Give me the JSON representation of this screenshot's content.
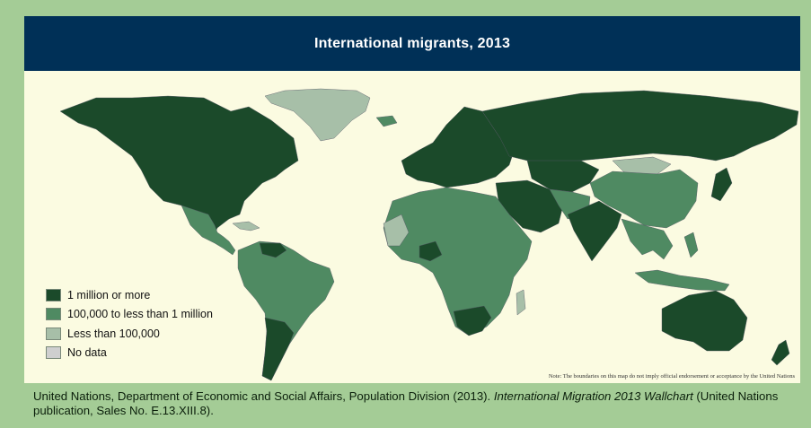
{
  "title": "International migrants, 2013",
  "legend": [
    {
      "label": "1 million or more",
      "color": "#1b4a2a"
    },
    {
      "label": "100,000 to less than 1 million",
      "color": "#4f8a62"
    },
    {
      "label": "Less than 100,000",
      "color": "#a7bfa8"
    },
    {
      "label": "No data",
      "color": "#cfcfcf"
    }
  ],
  "colors": {
    "background": "#a4cc96",
    "map_bg": "#fbfbe1",
    "title_bar": "#003057"
  },
  "note": "Note: The boundaries on this map do not imply official endorsement or acceptance by the United Nations",
  "citation": {
    "text": "United Nations, Department of Economic and Social Affairs, Population Division (2013). ",
    "italic": "International Migration 2013 Wallchart",
    "tail": " (United Nations publication, Sales No. E.13.XIII.8)."
  }
}
